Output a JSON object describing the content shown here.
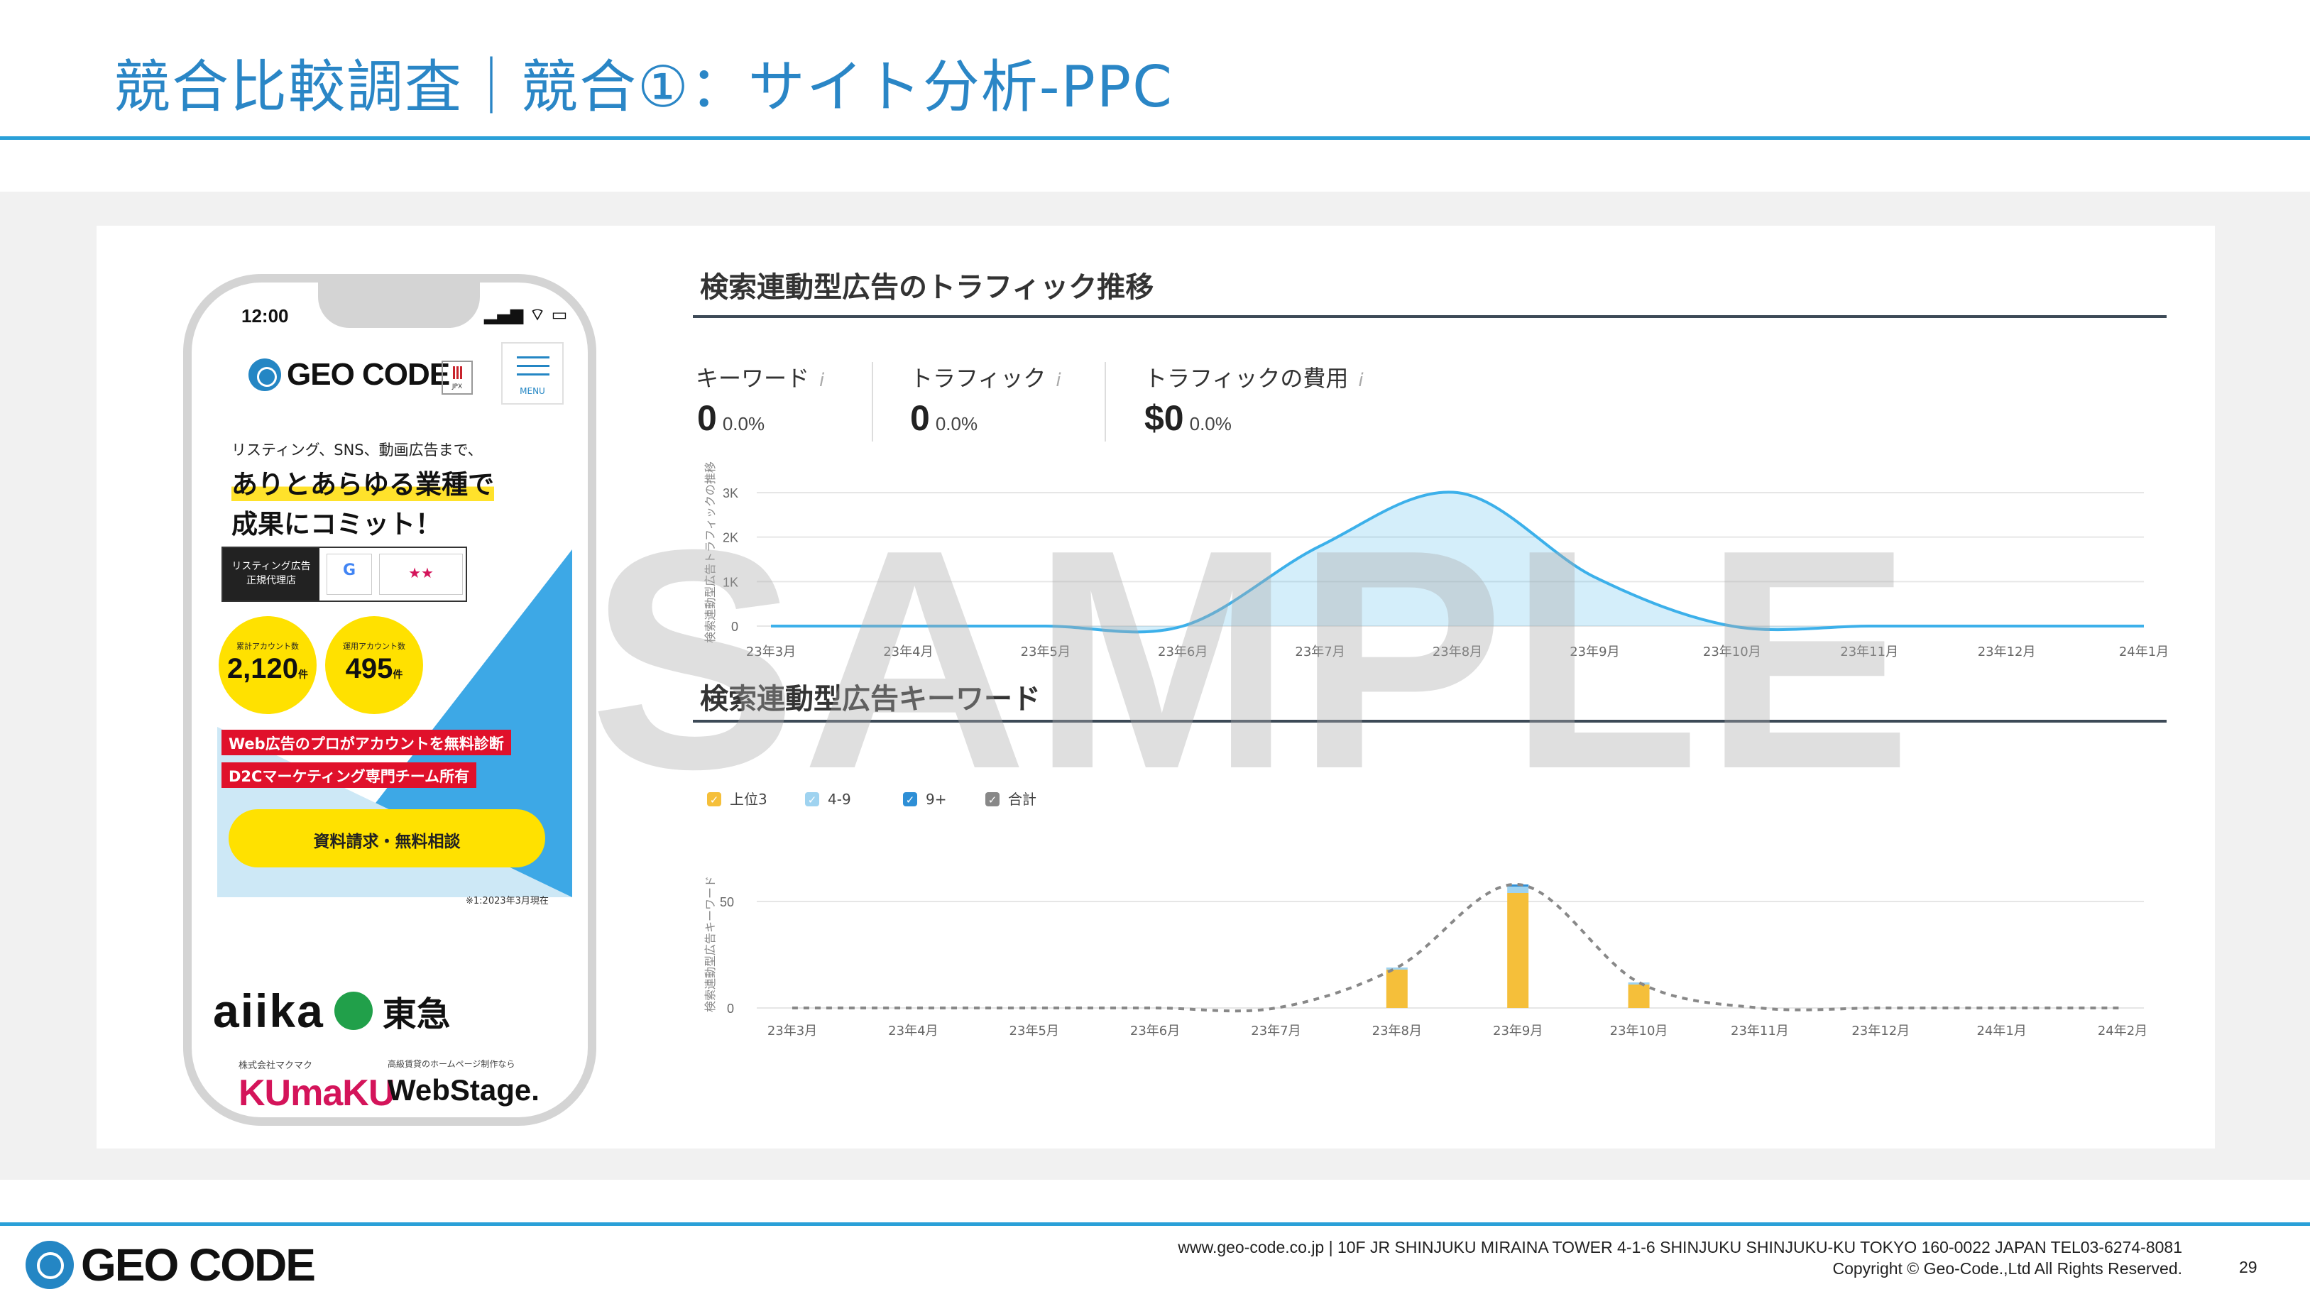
{
  "slide": {
    "title": "競合比較調査｜競合①：サイト分析-PPC",
    "page_number": "29",
    "watermark": "SAMPLE"
  },
  "phone": {
    "time": "12:00",
    "status_icons": "▂▄▆ ⌔ ▭",
    "logo_text": "GEO CODE",
    "jpx_label": "JPX",
    "menu_label": "MENU",
    "subcopy": "リスティング、SNS、動画広告まで、",
    "headline_1": "ありとあらゆる業種で",
    "headline_2": "成果にコミット！",
    "badge_left_1": "リスティング広告",
    "badge_left_2": "正規代理店",
    "badge_google": "G",
    "badge_yahoo": "★★",
    "stat1_label": "累計アカウント数",
    "stat1_value": "2,120",
    "stat1_unit": "件",
    "stat2_label": "運用アカウント数",
    "stat2_value": "495",
    "stat2_unit": "件",
    "red_banner_1": "Web広告のプロがアカウントを無料診断",
    "red_banner_2": "D2Cマーケティング専門チーム所有",
    "cta": "資料請求・無料相談",
    "note": "※1:2023年3月現在",
    "logo_aiika": "aiika",
    "logo_tokyu": "東急",
    "logo_kumaku": "KUmaKU",
    "logo_webstage": "WebStage.",
    "logo_small_1": "株式会社マクマク",
    "logo_small_2": "高級賃貸のホームページ制作なら"
  },
  "traffic_section": {
    "title": "検索連動型広告のトラフィック推移",
    "metrics": [
      {
        "label": "キーワード",
        "info": "i",
        "value": "0",
        "pct": "0.0%"
      },
      {
        "label": "トラフィック",
        "info": "i",
        "value": "0",
        "pct": "0.0%"
      },
      {
        "label": "トラフィックの費用",
        "info": "i",
        "value": "$0",
        "pct": "0.0%"
      }
    ]
  },
  "keyword_section": {
    "title": "検索連動型広告キーワード"
  },
  "chart_data": [
    {
      "type": "area",
      "ylabel": "検索連動型広告トラフィックの推移",
      "x": [
        "23年3月",
        "23年4月",
        "23年5月",
        "23年6月",
        "23年7月",
        "23年8月",
        "23年9月",
        "23年10月",
        "23年11月",
        "23年12月",
        "24年1月"
      ],
      "y_ticks": [
        "0",
        "1K",
        "2K",
        "3K"
      ],
      "ylim": [
        0,
        3000
      ],
      "series": [
        {
          "values": [
            0,
            0,
            0,
            0,
            1800,
            3000,
            1100,
            0,
            0,
            0,
            0
          ],
          "color": "#3cb0ea"
        }
      ],
      "grid": true
    },
    {
      "type": "bar",
      "ylabel": "検索連動型広告キーワード",
      "categories": [
        "23年3月",
        "23年4月",
        "23年5月",
        "23年6月",
        "23年7月",
        "23年8月",
        "23年9月",
        "23年10月",
        "23年11月",
        "23年12月",
        "24年1月",
        "24年2月"
      ],
      "y_ticks": [
        "0",
        "50"
      ],
      "ylim": [
        0,
        60
      ],
      "legend_position": "top-left",
      "series": [
        {
          "name": "上位3",
          "values": [
            0,
            0,
            0,
            0,
            0,
            18,
            54,
            11,
            0,
            0,
            0,
            0
          ],
          "color": "#f5bf3a"
        },
        {
          "name": "4-9",
          "values": [
            0,
            0,
            0,
            0,
            0,
            1,
            3,
            1,
            0,
            0,
            0,
            0
          ],
          "color": "#9fd3f0"
        },
        {
          "name": "9+",
          "values": [
            0,
            0,
            0,
            0,
            0,
            0,
            1,
            0,
            0,
            0,
            0,
            0
          ],
          "color": "#2e8fd6"
        },
        {
          "name": "合計",
          "values": [
            0,
            0,
            0,
            0,
            0,
            19,
            58,
            12,
            0,
            0,
            0,
            0
          ],
          "color": "#888888"
        }
      ],
      "grid": true
    }
  ],
  "footer": {
    "logo_text": "GEO CODE",
    "address": "www.geo-code.co.jp  |  10F JR SHINJUKU MIRAINA TOWER 4-1-6 SHINJUKU SHINJUKU-KU TOKYO 160-0022  JAPAN  TEL03-6274-8081",
    "copyright": "Copyright © Geo-Code.,Ltd All Rights Reserved."
  }
}
